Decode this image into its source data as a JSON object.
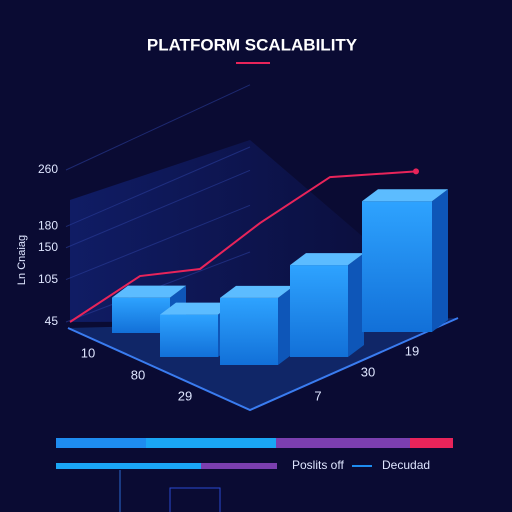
{
  "chart_data": {
    "type": "bar3d",
    "title": "PLATFORM SCALABILITY",
    "y_label": "Ln Cnaiag",
    "categories": [
      "10",
      "80",
      "29",
      "7",
      "30",
      "19"
    ],
    "series": [
      {
        "name": "Poslits off",
        "type": "bar",
        "color": "#1e8cf0",
        "values": [
          95,
          105,
          140,
          175,
          230,
          null
        ]
      },
      {
        "name": "Decudad",
        "type": "line",
        "color": "#e8245a",
        "values": [
          45,
          110,
          120,
          185,
          250,
          258
        ]
      }
    ],
    "ylim": [
      45,
      260
    ],
    "yticks": [
      45,
      105,
      150,
      180,
      260
    ],
    "grid": true
  }
}
